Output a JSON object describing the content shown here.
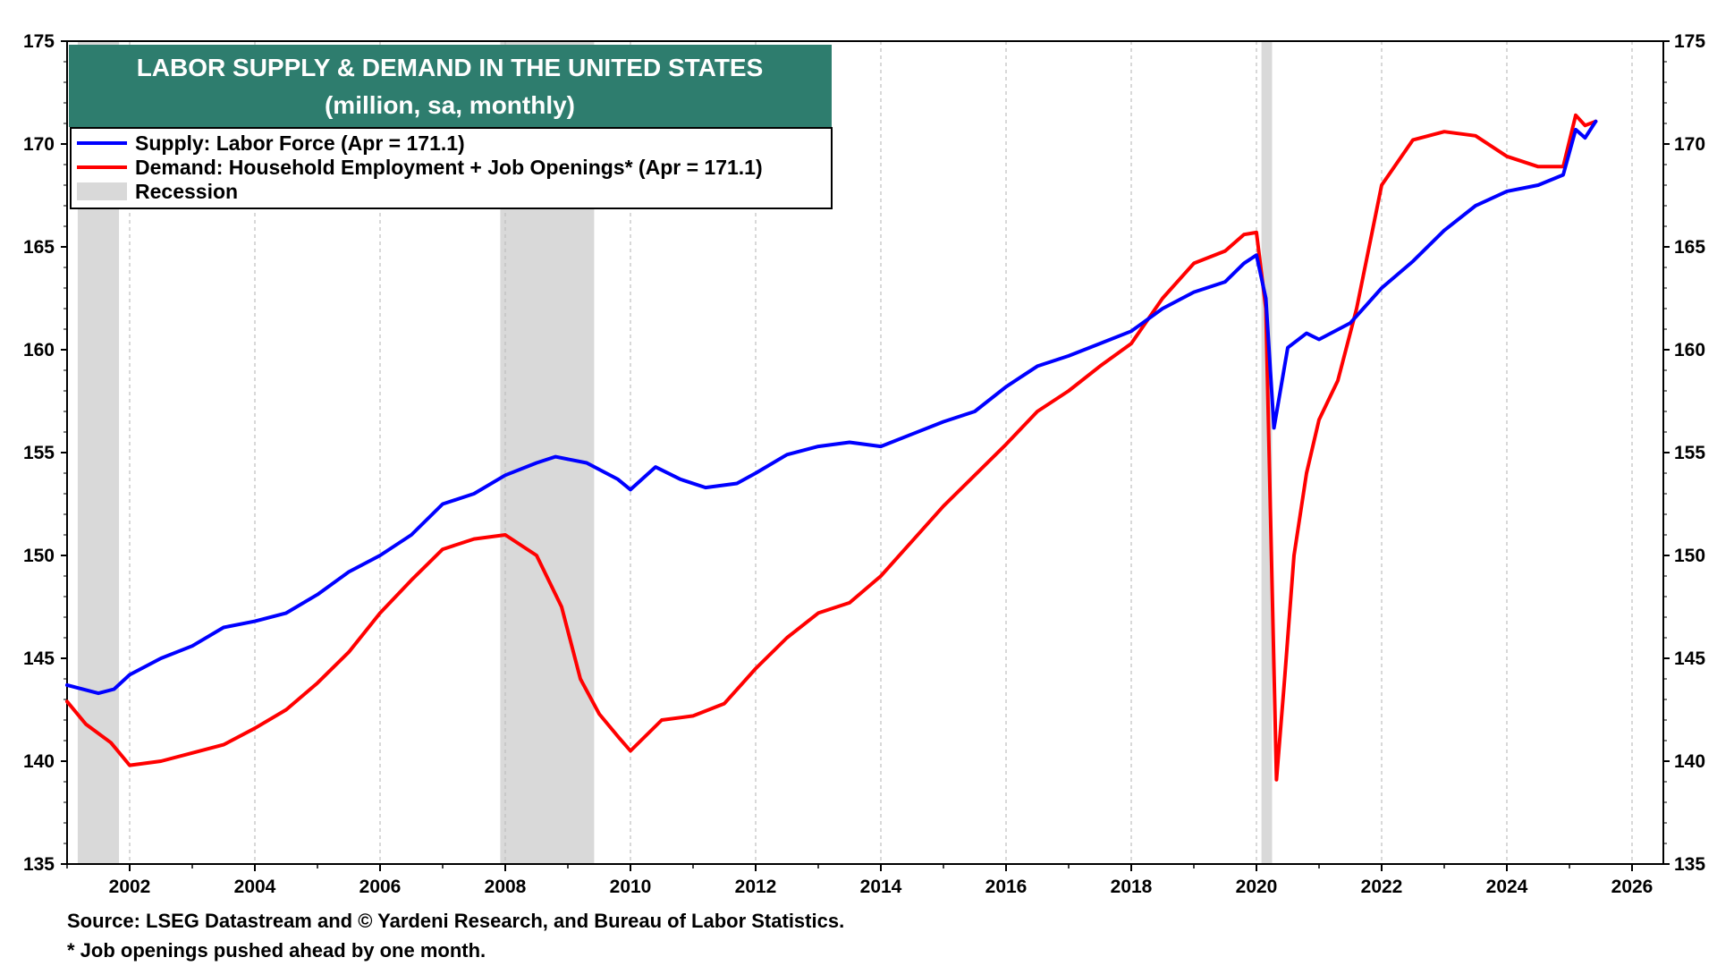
{
  "chart_data": {
    "type": "line",
    "title": "LABOR  SUPPLY & DEMAND IN THE UNITED STATES",
    "subtitle": "(million, sa, monthly)",
    "xlim": [
      2001.0,
      2026.5
    ],
    "ylim": [
      135,
      175
    ],
    "x_ticks": [
      "2002",
      "2004",
      "2006",
      "2008",
      "2010",
      "2012",
      "2014",
      "2016",
      "2018",
      "2020",
      "2022",
      "2024",
      "2026"
    ],
    "y_ticks": [
      "135",
      "140",
      "145",
      "150",
      "155",
      "160",
      "165",
      "170",
      "175"
    ],
    "grid": "vertical-dashed",
    "legend_position": "top-left",
    "recessions": [
      {
        "start": 2001.17,
        "end": 2001.83
      },
      {
        "start": 2007.92,
        "end": 2009.42
      },
      {
        "start": 2020.08,
        "end": 2020.25
      }
    ],
    "series": [
      {
        "name": "Supply: Labor Force (Apr = 171.1)",
        "color": "#0000ff",
        "points": [
          [
            2001.0,
            143.7
          ],
          [
            2001.5,
            143.3
          ],
          [
            2001.75,
            143.5
          ],
          [
            2002.0,
            144.2
          ],
          [
            2002.5,
            145.0
          ],
          [
            2003.0,
            145.6
          ],
          [
            2003.5,
            146.5
          ],
          [
            2004.0,
            146.8
          ],
          [
            2004.5,
            147.2
          ],
          [
            2005.0,
            148.1
          ],
          [
            2005.5,
            149.2
          ],
          [
            2006.0,
            150.0
          ],
          [
            2006.5,
            151.0
          ],
          [
            2007.0,
            152.5
          ],
          [
            2007.5,
            153.0
          ],
          [
            2008.0,
            153.9
          ],
          [
            2008.5,
            154.5
          ],
          [
            2008.8,
            154.8
          ],
          [
            2009.3,
            154.5
          ],
          [
            2009.8,
            153.7
          ],
          [
            2010.0,
            153.2
          ],
          [
            2010.4,
            154.3
          ],
          [
            2010.8,
            153.7
          ],
          [
            2011.2,
            153.3
          ],
          [
            2011.7,
            153.5
          ],
          [
            2012.0,
            154.0
          ],
          [
            2012.5,
            154.9
          ],
          [
            2013.0,
            155.3
          ],
          [
            2013.5,
            155.5
          ],
          [
            2014.0,
            155.3
          ],
          [
            2014.5,
            155.9
          ],
          [
            2015.0,
            156.5
          ],
          [
            2015.5,
            157.0
          ],
          [
            2016.0,
            158.2
          ],
          [
            2016.5,
            159.2
          ],
          [
            2017.0,
            159.7
          ],
          [
            2017.5,
            160.3
          ],
          [
            2018.0,
            160.9
          ],
          [
            2018.5,
            162.0
          ],
          [
            2019.0,
            162.8
          ],
          [
            2019.5,
            163.3
          ],
          [
            2019.8,
            164.2
          ],
          [
            2020.0,
            164.6
          ],
          [
            2020.15,
            162.5
          ],
          [
            2020.28,
            156.2
          ],
          [
            2020.5,
            160.1
          ],
          [
            2020.8,
            160.8
          ],
          [
            2021.0,
            160.5
          ],
          [
            2021.5,
            161.3
          ],
          [
            2022.0,
            163.0
          ],
          [
            2022.5,
            164.3
          ],
          [
            2023.0,
            165.8
          ],
          [
            2023.5,
            167.0
          ],
          [
            2024.0,
            167.7
          ],
          [
            2024.5,
            168.0
          ],
          [
            2024.9,
            168.5
          ],
          [
            2025.1,
            170.7
          ],
          [
            2025.25,
            170.3
          ],
          [
            2025.42,
            171.1
          ]
        ]
      },
      {
        "name": "Demand: Household Employment + Job Openings* (Apr = 171.1)",
        "color": "#ff0000",
        "points": [
          [
            2001.0,
            142.9
          ],
          [
            2001.3,
            141.8
          ],
          [
            2001.7,
            140.9
          ],
          [
            2002.0,
            139.8
          ],
          [
            2002.5,
            140.0
          ],
          [
            2003.0,
            140.4
          ],
          [
            2003.5,
            140.8
          ],
          [
            2004.0,
            141.6
          ],
          [
            2004.5,
            142.5
          ],
          [
            2005.0,
            143.8
          ],
          [
            2005.5,
            145.3
          ],
          [
            2006.0,
            147.2
          ],
          [
            2006.5,
            148.8
          ],
          [
            2007.0,
            150.3
          ],
          [
            2007.5,
            150.8
          ],
          [
            2008.0,
            151.0
          ],
          [
            2008.5,
            150.0
          ],
          [
            2008.9,
            147.5
          ],
          [
            2009.2,
            144.0
          ],
          [
            2009.5,
            142.3
          ],
          [
            2009.8,
            141.2
          ],
          [
            2010.0,
            140.5
          ],
          [
            2010.5,
            142.0
          ],
          [
            2011.0,
            142.2
          ],
          [
            2011.5,
            142.8
          ],
          [
            2012.0,
            144.5
          ],
          [
            2012.5,
            146.0
          ],
          [
            2013.0,
            147.2
          ],
          [
            2013.5,
            147.7
          ],
          [
            2014.0,
            149.0
          ],
          [
            2014.5,
            150.7
          ],
          [
            2015.0,
            152.4
          ],
          [
            2015.5,
            153.9
          ],
          [
            2016.0,
            155.4
          ],
          [
            2016.5,
            157.0
          ],
          [
            2017.0,
            158.0
          ],
          [
            2017.5,
            159.2
          ],
          [
            2018.0,
            160.3
          ],
          [
            2018.5,
            162.5
          ],
          [
            2019.0,
            164.2
          ],
          [
            2019.5,
            164.8
          ],
          [
            2019.8,
            165.6
          ],
          [
            2020.0,
            165.7
          ],
          [
            2020.15,
            162.0
          ],
          [
            2020.32,
            139.1
          ],
          [
            2020.45,
            144.0
          ],
          [
            2020.6,
            150.0
          ],
          [
            2020.8,
            154.0
          ],
          [
            2021.0,
            156.6
          ],
          [
            2021.3,
            158.5
          ],
          [
            2021.6,
            162.0
          ],
          [
            2022.0,
            168.0
          ],
          [
            2022.5,
            170.2
          ],
          [
            2023.0,
            170.6
          ],
          [
            2023.5,
            170.4
          ],
          [
            2024.0,
            169.4
          ],
          [
            2024.5,
            168.9
          ],
          [
            2024.9,
            168.9
          ],
          [
            2025.1,
            171.4
          ],
          [
            2025.25,
            170.9
          ],
          [
            2025.42,
            171.1
          ]
        ]
      },
      {
        "name": "Recession",
        "color": "#d9d9d9"
      }
    ]
  },
  "notes": {
    "source": "Source: LSEG Datastream and © Yardeni Research, and  Bureau of Labor Statistics.",
    "footnote": "* Job openings pushed ahead by one month."
  },
  "colors": {
    "title_box": "#2e7d6e",
    "recession": "#d9d9d9"
  }
}
